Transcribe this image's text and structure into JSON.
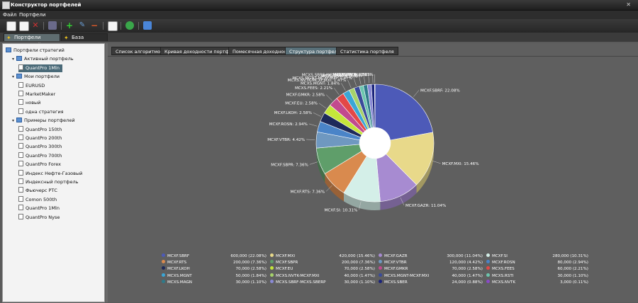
{
  "window": {
    "title": "Конструктор портфелей",
    "close": "✕"
  },
  "menu": [
    "Файл",
    "Портфели"
  ],
  "doc_tabs": [
    {
      "label": "Портфели стратегий",
      "active": true
    },
    {
      "label": "База алгоритмов",
      "active": false
    }
  ],
  "tree": [
    {
      "label": "Портфели стратегий",
      "level": 0,
      "type": "folder",
      "arrow": ""
    },
    {
      "label": "Активный портфель",
      "level": 1,
      "type": "folder",
      "arrow": "▾"
    },
    {
      "label": "QuantPro 1Mln",
      "level": 2,
      "type": "doc",
      "arrow": "",
      "selected": true
    },
    {
      "label": "Мои портфели",
      "level": 1,
      "type": "folder",
      "arrow": "▾"
    },
    {
      "label": "EURUSD",
      "level": 2,
      "type": "doc",
      "arrow": ""
    },
    {
      "label": "MarketMaker",
      "level": 2,
      "type": "doc",
      "arrow": ""
    },
    {
      "label": "новый",
      "level": 2,
      "type": "doc",
      "arrow": ""
    },
    {
      "label": "одна стратегия",
      "level": 2,
      "type": "doc",
      "arrow": ""
    },
    {
      "label": "Примеры портфелей",
      "level": 1,
      "type": "folder",
      "arrow": "▾"
    },
    {
      "label": "QuantPro 150th",
      "level": 2,
      "type": "doc",
      "arrow": ""
    },
    {
      "label": "QuantPro 200th",
      "level": 2,
      "type": "doc",
      "arrow": ""
    },
    {
      "label": "QuantPro 300th",
      "level": 2,
      "type": "doc",
      "arrow": ""
    },
    {
      "label": "QuantPro 700th",
      "level": 2,
      "type": "doc",
      "arrow": ""
    },
    {
      "label": "QuantPro Forex",
      "level": 2,
      "type": "doc",
      "arrow": ""
    },
    {
      "label": "Индекс Нефте-Газовый",
      "level": 2,
      "type": "doc",
      "arrow": ""
    },
    {
      "label": "Индексный портфель",
      "level": 2,
      "type": "doc",
      "arrow": ""
    },
    {
      "label": "Фьючерс РТС",
      "level": 2,
      "type": "doc",
      "arrow": ""
    },
    {
      "label": "Comon 500th",
      "level": 2,
      "type": "doc",
      "arrow": ""
    },
    {
      "label": "QuantPro 1Mln",
      "level": 2,
      "type": "doc",
      "arrow": ""
    },
    {
      "label": "QuantPro Nyse",
      "level": 2,
      "type": "doc",
      "arrow": ""
    }
  ],
  "tabs": [
    {
      "label": "Список алгоритмов",
      "active": false
    },
    {
      "label": "Кривая доходности портфеля",
      "active": false
    },
    {
      "label": "Помесячная доходность",
      "active": false
    },
    {
      "label": "Структура портфеля",
      "active": true
    },
    {
      "label": "Статистика портфеля",
      "active": false
    }
  ],
  "chart_data": {
    "type": "pie",
    "title": "",
    "slices": [
      {
        "name": "MCXF.SBRF",
        "amount": "600,000",
        "percent": 22.08,
        "color": "#4d5ab8"
      },
      {
        "name": "MCXF.MXI",
        "amount": "420,000",
        "percent": 15.46,
        "color": "#e8d98a"
      },
      {
        "name": "MCXF.GAZR",
        "amount": "300,000",
        "percent": 11.04,
        "color": "#a78bd1"
      },
      {
        "name": "MCXF.SI",
        "amount": "280,000",
        "percent": 10.31,
        "color": "#d4efe8"
      },
      {
        "name": "MCXF.RTS",
        "amount": "200,000",
        "percent": 7.36,
        "color": "#d98a4e"
      },
      {
        "name": "MCXF.SBPR",
        "amount": "200,000",
        "percent": 7.36,
        "color": "#5f9e6a"
      },
      {
        "name": "MCXF.VTBR",
        "amount": "120,000",
        "percent": 4.42,
        "color": "#6f98c0"
      },
      {
        "name": "MCXF.ROSN",
        "amount": "80,000",
        "percent": 2.94,
        "color": "#4a84c8"
      },
      {
        "name": "MCXF.LKOH",
        "amount": "70,000",
        "percent": 2.58,
        "color": "#1e2a5a"
      },
      {
        "name": "MCXF.EU",
        "amount": "70,000",
        "percent": 2.58,
        "color": "#c5e63a"
      },
      {
        "name": "MCXF.GMKR",
        "amount": "70,000",
        "percent": 2.58,
        "color": "#c24a8e"
      },
      {
        "name": "MCXS.FEES",
        "amount": "60,000",
        "percent": 2.21,
        "color": "#e34848"
      },
      {
        "name": "MCXS.MGNT",
        "amount": "50,000",
        "percent": 1.84,
        "color": "#3aa6d6"
      },
      {
        "name": "MCXS.NVTK-MCXF.MXI",
        "amount": "40,000",
        "percent": 1.47,
        "color": "#a6d36a"
      },
      {
        "name": "MCXS.MGNT-MCXF.MXI",
        "amount": "40,000",
        "percent": 1.47,
        "color": "#3a4b9a"
      },
      {
        "name": "MCXS.RSTI",
        "amount": "30,000",
        "percent": 1.1,
        "color": "#6cc6ae"
      },
      {
        "name": "MCXS.MAGN",
        "amount": "30,000",
        "percent": 1.1,
        "color": "#2f7a8a"
      },
      {
        "name": "MCXS.SBRF-MCXS.SBERP",
        "amount": "30,000",
        "percent": 1.1,
        "color": "#8a8ad6"
      },
      {
        "name": "MCXS.SBER",
        "amount": "24,000",
        "percent": 0.88,
        "color": "#1a237a"
      },
      {
        "name": "MCXS.NVTK",
        "amount": "3,000",
        "percent": 0.11,
        "color": "#8a4ac8"
      }
    ]
  }
}
